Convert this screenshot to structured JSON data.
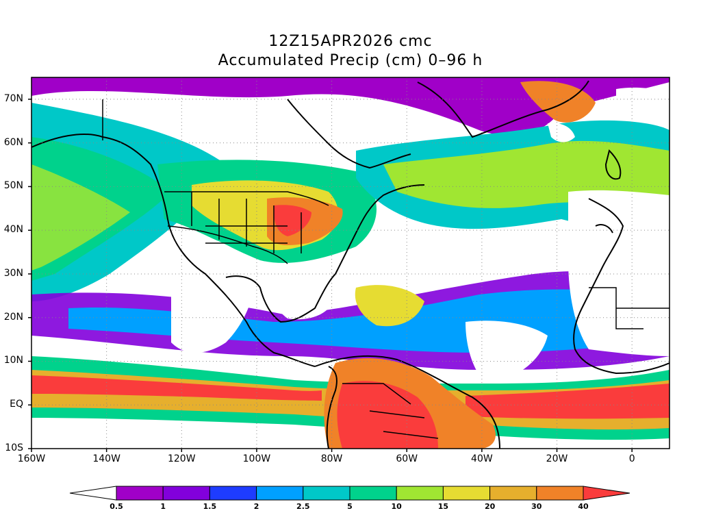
{
  "title": {
    "line1": "12Z15APR2026 cmc",
    "line2": "Accumulated Precip (cm) 0–96 h"
  },
  "map": {
    "lon_range": [
      -160,
      10
    ],
    "lat_range": [
      -10,
      75
    ],
    "y_ticks": [
      {
        "lat": 70,
        "label": "70N"
      },
      {
        "lat": 60,
        "label": "60N"
      },
      {
        "lat": 50,
        "label": "50N"
      },
      {
        "lat": 40,
        "label": "40N"
      },
      {
        "lat": 30,
        "label": "30N"
      },
      {
        "lat": 20,
        "label": "20N"
      },
      {
        "lat": 10,
        "label": "10N"
      },
      {
        "lat": 0,
        "label": "EQ"
      },
      {
        "lat": -10,
        "label": "10S"
      }
    ],
    "x_ticks": [
      {
        "lon": -160,
        "label": "160W"
      },
      {
        "lon": -140,
        "label": "140W"
      },
      {
        "lon": -120,
        "label": "120W"
      },
      {
        "lon": -100,
        "label": "100W"
      },
      {
        "lon": -80,
        "label": "80W"
      },
      {
        "lon": -60,
        "label": "60W"
      },
      {
        "lon": -40,
        "label": "40W"
      },
      {
        "lon": -20,
        "label": "20W"
      },
      {
        "lon": 0,
        "label": "0"
      }
    ],
    "grid": "dotted"
  },
  "colorbar": {
    "unit": "cm",
    "levels": [
      "0.5",
      "1",
      "1.5",
      "2",
      "2.5",
      "5",
      "10",
      "15",
      "20",
      "30",
      "40"
    ],
    "colors": [
      "#ffffff",
      "#a000c8",
      "#8200dc",
      "#1e3cff",
      "#00a0ff",
      "#00c8c8",
      "#00d28c",
      "#a0e632",
      "#e6dc32",
      "#e6af2d",
      "#f08228",
      "#fa3c3c"
    ]
  }
}
